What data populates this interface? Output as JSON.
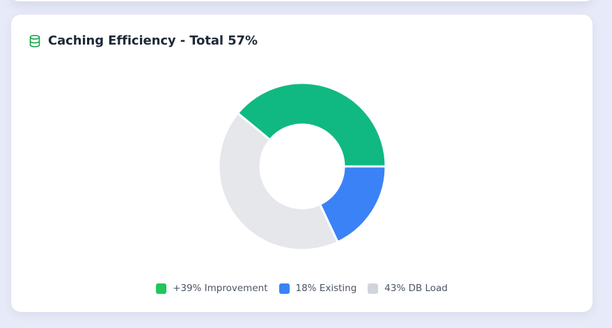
{
  "card": {
    "title": "Caching Efficiency - Total 57%",
    "icon": "database-icon"
  },
  "chart_data": {
    "type": "pie",
    "variant": "doughnut",
    "title": "Caching Efficiency - Total 57%",
    "categories": [
      "+39% Improvement",
      "18% Existing",
      "43% DB Load"
    ],
    "values": [
      39,
      18,
      43
    ],
    "colors": [
      "#10b981",
      "#3b82f6",
      "#e5e7eb"
    ],
    "legend_colors": [
      "#22c55e",
      "#3b82f6",
      "#d1d5db"
    ],
    "legend_position": "bottom"
  }
}
